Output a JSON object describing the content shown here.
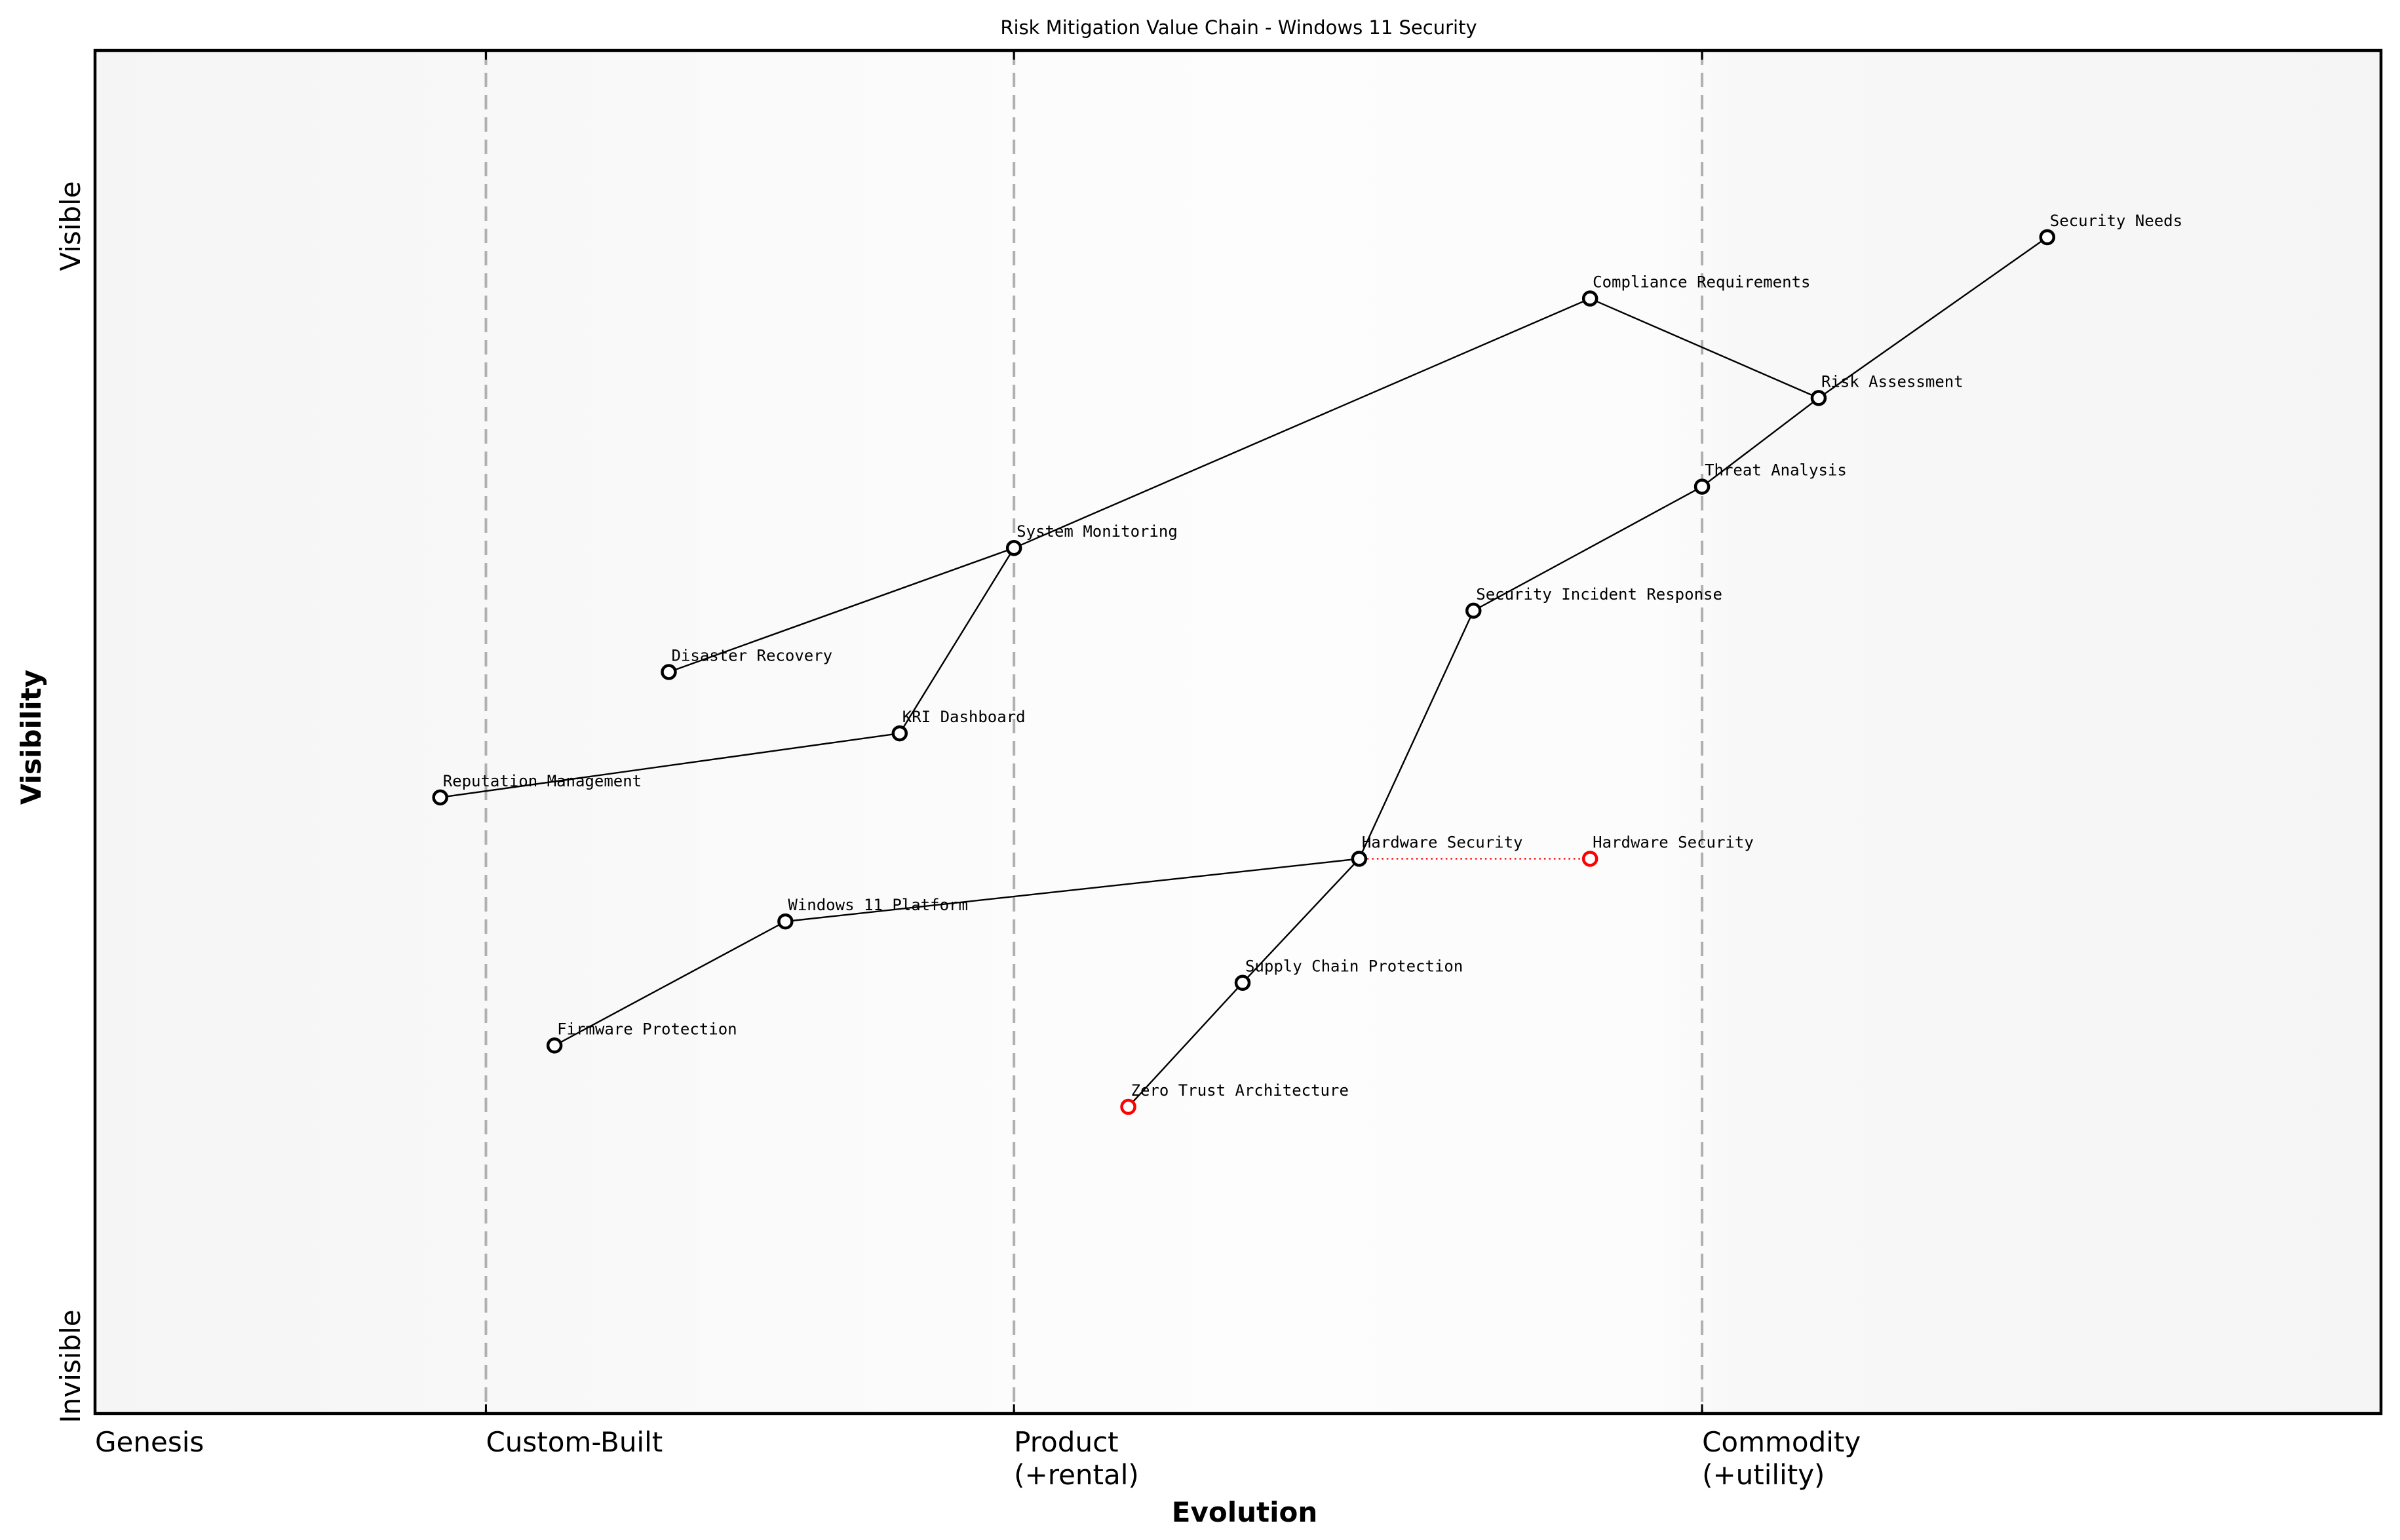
{
  "title": "Risk Mitigation Value Chain - Windows 11 Security",
  "axes": {
    "x_title": "Evolution",
    "y_title": "Visibility",
    "y_top_label": "Visible",
    "y_bottom_label": "Invisible",
    "stages": [
      {
        "label_line1": "Genesis",
        "label_line2": "",
        "x": 0.0,
        "divider": false
      },
      {
        "label_line1": "Custom-Built",
        "label_line2": "",
        "x": 0.171,
        "divider": true
      },
      {
        "label_line1": "Product",
        "label_line2": "(+rental)",
        "x": 0.402,
        "divider": true
      },
      {
        "label_line1": "Commodity",
        "label_line2": "(+utility)",
        "x": 0.703,
        "divider": true
      }
    ]
  },
  "colors": {
    "node_stroke": "#000000",
    "evolving_stroke": "#ff0000",
    "stage_divider": "#b0b0b0",
    "background_edge": "#f5f5f5",
    "background_mid": "#fdfdfd"
  },
  "chart_data": {
    "type": "wardley_map",
    "title": "Risk Mitigation Value Chain - Windows 11 Security",
    "xlabel": "Evolution",
    "ylabel": "Visibility",
    "xlim": [
      0,
      1
    ],
    "ylim": [
      0,
      1
    ],
    "x_stage_ticks": [
      "Genesis",
      "Custom-Built",
      "Product (+rental)",
      "Commodity (+utility)"
    ],
    "components": [
      {
        "id": "security_needs",
        "name": "Security Needs",
        "evolution": 0.854,
        "visibility": 0.863,
        "color": "black"
      },
      {
        "id": "compliance_requirements",
        "name": "Compliance Requirements",
        "evolution": 0.654,
        "visibility": 0.818,
        "color": "black"
      },
      {
        "id": "risk_assessment",
        "name": "Risk Assessment",
        "evolution": 0.754,
        "visibility": 0.745,
        "color": "black"
      },
      {
        "id": "threat_analysis",
        "name": "Threat Analysis",
        "evolution": 0.703,
        "visibility": 0.68,
        "color": "black"
      },
      {
        "id": "system_monitoring",
        "name": "System Monitoring",
        "evolution": 0.402,
        "visibility": 0.635,
        "color": "black"
      },
      {
        "id": "security_incident_response",
        "name": "Security Incident Response",
        "evolution": 0.603,
        "visibility": 0.589,
        "color": "black"
      },
      {
        "id": "disaster_recovery",
        "name": "Disaster Recovery",
        "evolution": 0.251,
        "visibility": 0.544,
        "color": "black"
      },
      {
        "id": "kri_dashboard",
        "name": "KRI Dashboard",
        "evolution": 0.352,
        "visibility": 0.499,
        "color": "black"
      },
      {
        "id": "reputation_management",
        "name": "Reputation Management",
        "evolution": 0.151,
        "visibility": 0.452,
        "color": "black"
      },
      {
        "id": "hardware_security",
        "name": "Hardware Security",
        "evolution": 0.553,
        "visibility": 0.407,
        "color": "black"
      },
      {
        "id": "hardware_security_evolved",
        "name": "Hardware Security",
        "evolution": 0.654,
        "visibility": 0.407,
        "color": "red"
      },
      {
        "id": "windows_11_platform",
        "name": "Windows 11 Platform",
        "evolution": 0.302,
        "visibility": 0.361,
        "color": "black"
      },
      {
        "id": "supply_chain_protection",
        "name": "Supply Chain Protection",
        "evolution": 0.502,
        "visibility": 0.316,
        "color": "black"
      },
      {
        "id": "firmware_protection",
        "name": "Firmware Protection",
        "evolution": 0.201,
        "visibility": 0.27,
        "color": "black"
      },
      {
        "id": "zero_trust_architecture",
        "name": "Zero Trust Architecture",
        "evolution": 0.452,
        "visibility": 0.225,
        "color": "red"
      }
    ],
    "links": [
      [
        "security_needs",
        "risk_assessment"
      ],
      [
        "compliance_requirements",
        "risk_assessment"
      ],
      [
        "risk_assessment",
        "threat_analysis"
      ],
      [
        "threat_analysis",
        "security_incident_response"
      ],
      [
        "compliance_requirements",
        "system_monitoring"
      ],
      [
        "system_monitoring",
        "disaster_recovery"
      ],
      [
        "system_monitoring",
        "kri_dashboard"
      ],
      [
        "kri_dashboard",
        "reputation_management"
      ],
      [
        "security_incident_response",
        "hardware_security"
      ],
      [
        "hardware_security",
        "windows_11_platform"
      ],
      [
        "hardware_security",
        "supply_chain_protection"
      ],
      [
        "windows_11_platform",
        "firmware_protection"
      ],
      [
        "supply_chain_protection",
        "zero_trust_architecture"
      ]
    ],
    "evolution_links": [
      [
        "hardware_security",
        "hardware_security_evolved"
      ]
    ]
  }
}
